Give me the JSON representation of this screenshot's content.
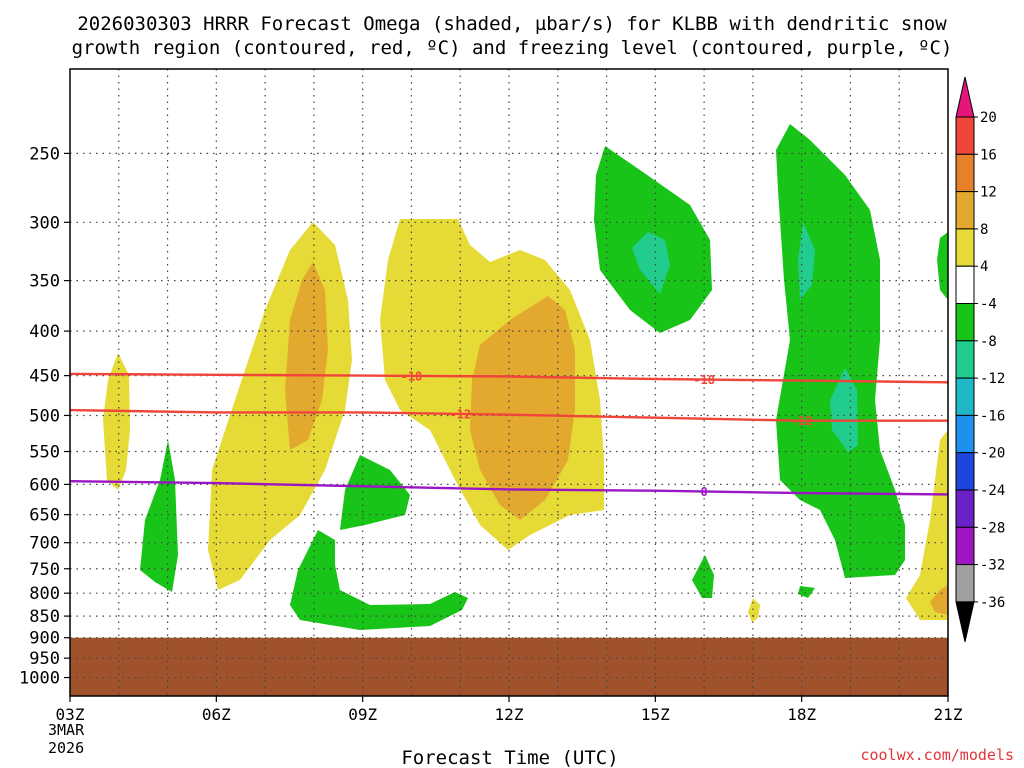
{
  "chart_data": {
    "type": "time-height-contour",
    "title_line1": "2026030303 HRRR Forecast Omega (shaded, µbar/s) for KLBB with dendritic snow",
    "title_line2": "growth region (contoured, red, ºC) and freezing level (contoured, purple, ºC)",
    "xlabel": "Forecast Time (UTC)",
    "credit": "coolwx.com/models",
    "x_ticks": [
      "03Z",
      "06Z",
      "09Z",
      "12Z",
      "15Z",
      "18Z",
      "21Z"
    ],
    "x_hours": [
      0,
      3,
      6,
      9,
      12,
      15,
      18
    ],
    "x_first_date_lines": [
      "3MAR",
      "2026"
    ],
    "y_ticks": [
      250,
      300,
      350,
      400,
      450,
      500,
      550,
      600,
      650,
      700,
      750,
      800,
      850,
      900,
      950,
      1000
    ],
    "y_axis_scale": "log-pressure",
    "y_range_hPa": [
      200,
      1050
    ],
    "ground_level_hPa": 900,
    "ground_color": "#a0522d",
    "colorbar": {
      "labels": [
        "20",
        "16",
        "12",
        "8",
        "4",
        "-4",
        "-8",
        "-12",
        "-16",
        "-20",
        "-24",
        "-28",
        "-32",
        "-36"
      ],
      "colors": [
        "#e4167a",
        "#f0453a",
        "#e7802a",
        "#e3a92e",
        "#e6da36",
        "#ffffff",
        "#18c418",
        "#21cc8c",
        "#20b8c8",
        "#1e90ee",
        "#1c46dc",
        "#6a22c6",
        "#a015c2",
        "#a0a0a0",
        "#000000"
      ]
    },
    "contours": [
      {
        "name": "dendritic-minus18",
        "label": "-18",
        "color": "#f0453a",
        "points": [
          [
            0,
            448
          ],
          [
            3,
            449
          ],
          [
            6,
            450
          ],
          [
            9,
            451
          ],
          [
            12,
            454
          ],
          [
            15,
            456
          ],
          [
            18,
            458
          ]
        ]
      },
      {
        "name": "dendritic-minus12",
        "label": "-12",
        "color": "#f0453a",
        "points": [
          [
            0,
            493
          ],
          [
            3,
            496
          ],
          [
            6,
            496
          ],
          [
            9,
            499
          ],
          [
            12,
            503
          ],
          [
            15,
            507
          ],
          [
            18,
            507
          ]
        ]
      },
      {
        "name": "freezing-level-0",
        "label": "0",
        "color": "#9c15c4",
        "points": [
          [
            0,
            595
          ],
          [
            3,
            598
          ],
          [
            6,
            603
          ],
          [
            9,
            608
          ],
          [
            12,
            610
          ],
          [
            15,
            614
          ],
          [
            18,
            616
          ]
        ]
      }
    ]
  }
}
